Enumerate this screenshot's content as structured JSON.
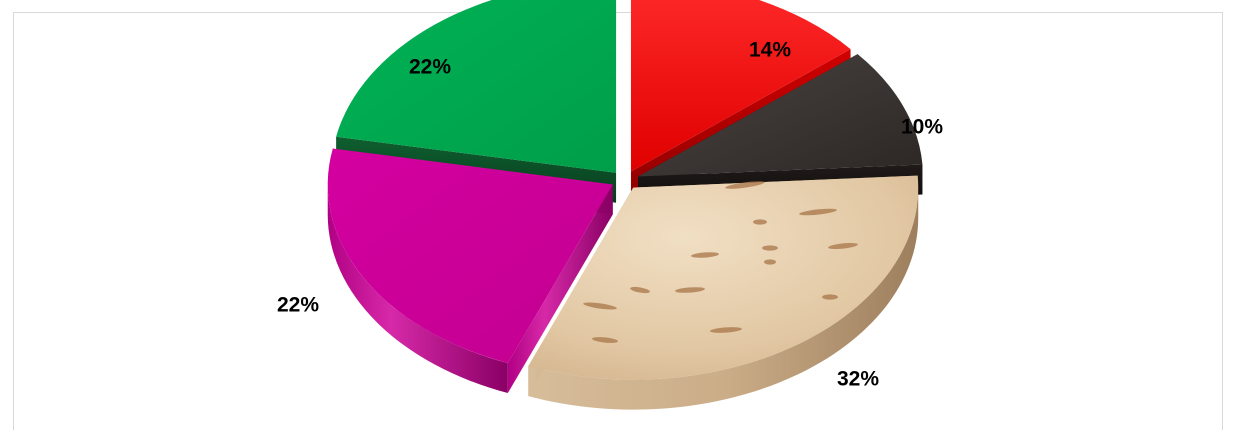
{
  "chart_data": {
    "type": "pie",
    "style": "3d-exploded",
    "title": "",
    "values": [
      14,
      10,
      32,
      22,
      22
    ],
    "slices": [
      {
        "value": 14,
        "label": "14%",
        "color": "#ff0000",
        "side_color": "#b30000"
      },
      {
        "value": 10,
        "label": "10%",
        "color": "#3a3432",
        "side_color": "#141010"
      },
      {
        "value": 32,
        "label": "32%",
        "color": "#dcc09c",
        "side_color": "#a98d6c",
        "texture": "fossil-sandstone"
      },
      {
        "value": 22,
        "label": "22%",
        "color": "#cc0099",
        "side_color": "#8f006a"
      },
      {
        "value": 22,
        "label": "22%",
        "color": "#00a84f",
        "side_color": "#0b5a2a"
      }
    ],
    "legend": "none",
    "grid": false
  }
}
